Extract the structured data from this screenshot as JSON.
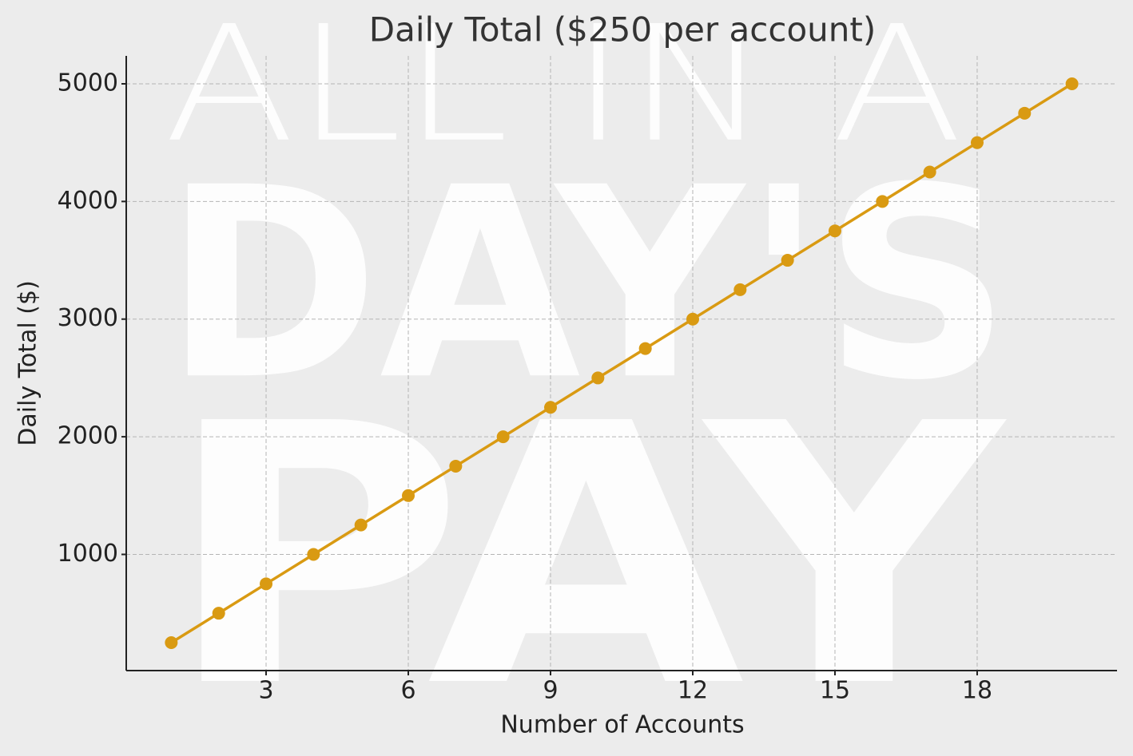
{
  "chart_data": {
    "type": "line",
    "title": "Daily Total ($250 per account)",
    "x_label": "Number of Accounts",
    "y_label": "Daily Total ($)",
    "watermark": [
      "ALL IN A",
      "DAY'S",
      "PAY"
    ],
    "x": [
      1,
      2,
      3,
      4,
      5,
      6,
      7,
      8,
      9,
      10,
      11,
      12,
      13,
      14,
      15,
      16,
      17,
      18,
      19,
      20
    ],
    "series": [
      {
        "name": "Daily Total",
        "color": "#d99a12",
        "values": [
          250,
          500,
          750,
          1000,
          1250,
          1500,
          1750,
          2000,
          2250,
          2500,
          2750,
          3000,
          3250,
          3500,
          3750,
          4000,
          4250,
          4500,
          4750,
          5000
        ]
      }
    ],
    "xlim": [
      0.05,
      20.95
    ],
    "xticks": [
      3,
      6,
      9,
      12,
      15,
      18
    ],
    "ylim": [
      12.5,
      5237.5
    ],
    "yticks": [
      1000,
      2000,
      3000,
      4000,
      5000
    ],
    "grid": true,
    "markers": true
  }
}
